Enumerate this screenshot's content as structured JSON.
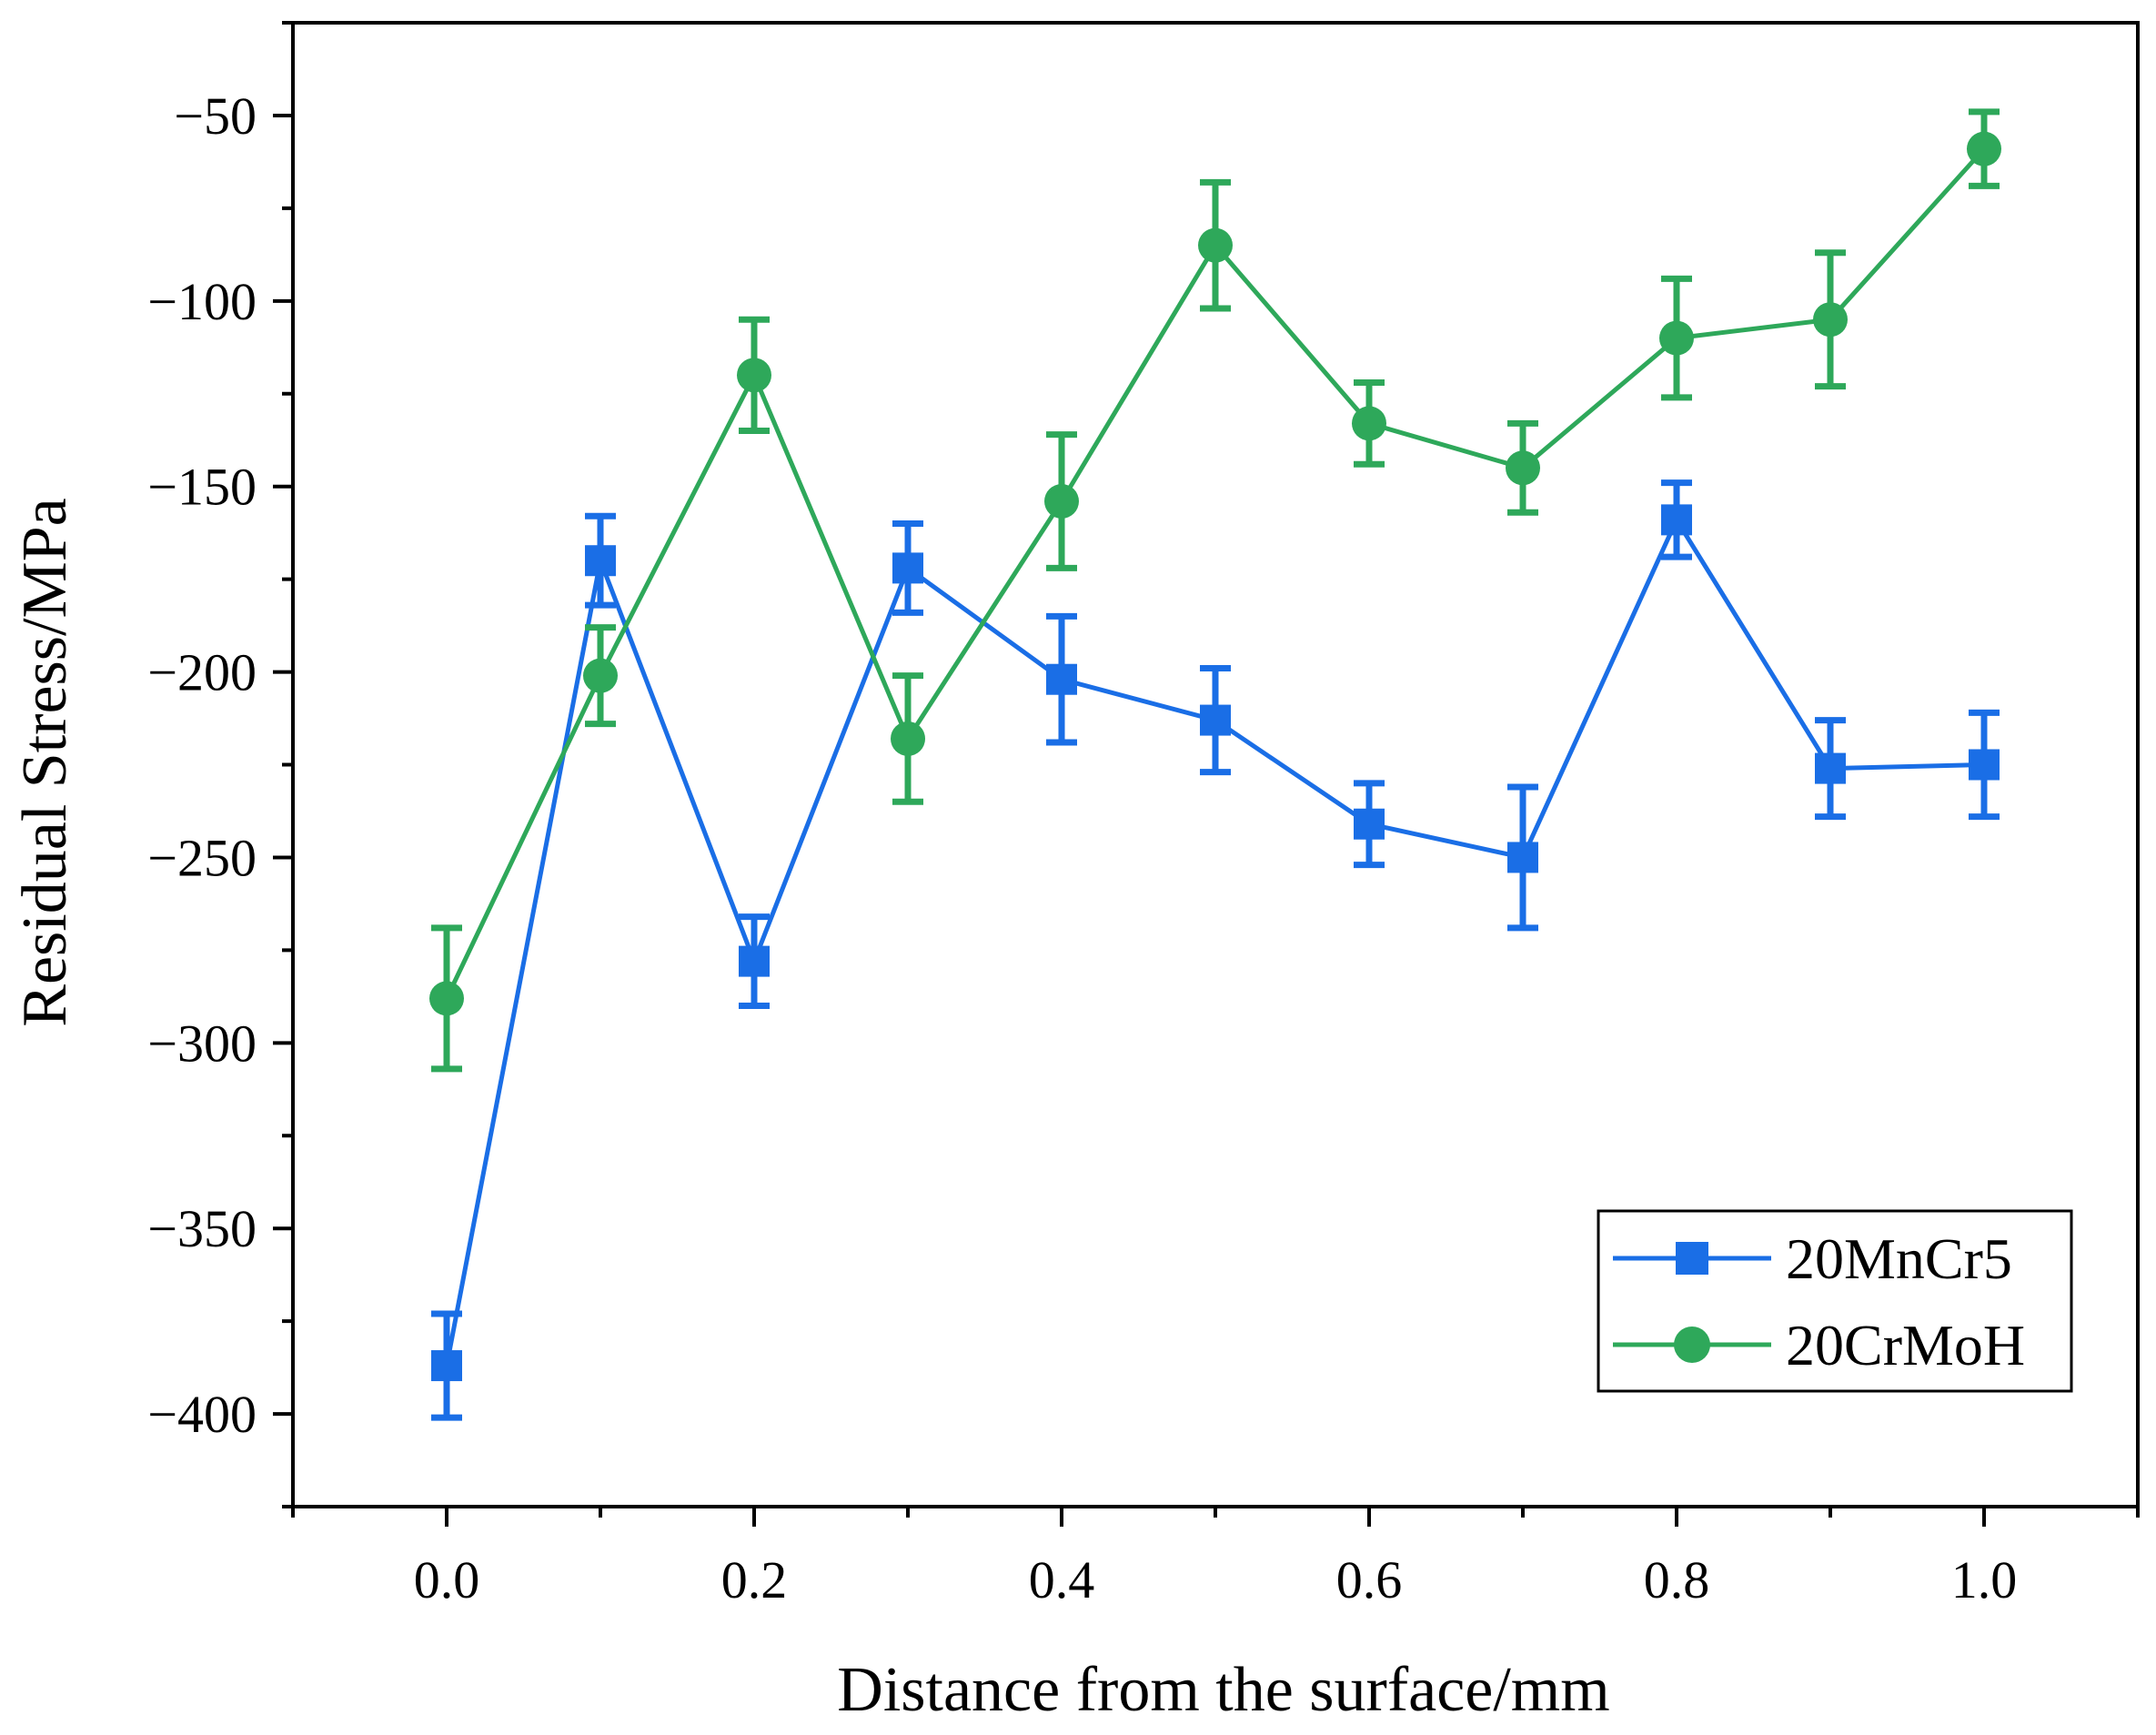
{
  "chart_data": {
    "type": "line",
    "title": "",
    "xlabel": "Distance from the surface/mm",
    "ylabel": "Residual Stress/MPa",
    "xlim": [
      -0.1,
      1.1
    ],
    "ylim": [
      -425,
      -25
    ],
    "x_ticks": [
      0.0,
      0.2,
      0.4,
      0.6,
      0.8,
      1.0
    ],
    "x_tick_labels": [
      "0.0",
      "0.2",
      "0.4",
      "0.6",
      "0.8",
      "1.0"
    ],
    "y_ticks": [
      -400,
      -350,
      -300,
      -250,
      -200,
      -150,
      -100,
      -50
    ],
    "y_tick_labels": [
      "−400",
      "−350",
      "−300",
      "−250",
      "−200",
      "−150",
      "−100",
      "−50"
    ],
    "grid": false,
    "legend_position": "bottom-right",
    "x": [
      0.0,
      0.1,
      0.2,
      0.3,
      0.4,
      0.5,
      0.6,
      0.7,
      0.8,
      0.9,
      1.0
    ],
    "series": [
      {
        "name": "20MnCr5",
        "marker": "square",
        "color": "#1a6ee6",
        "values": [
          -387,
          -170,
          -278,
          -172,
          -202,
          -213,
          -241,
          -250,
          -159,
          -226,
          -225
        ],
        "error": [
          14,
          12,
          12,
          12,
          17,
          14,
          11,
          19,
          10,
          13,
          14
        ]
      },
      {
        "name": "20CrMoH",
        "marker": "circle",
        "color": "#2ea85a",
        "values": [
          -288,
          -201,
          -120,
          -218,
          -154,
          -85,
          -133,
          -145,
          -110,
          -105,
          -59
        ],
        "error": [
          19,
          13,
          15,
          17,
          18,
          17,
          11,
          12,
          16,
          18,
          10
        ]
      }
    ]
  }
}
